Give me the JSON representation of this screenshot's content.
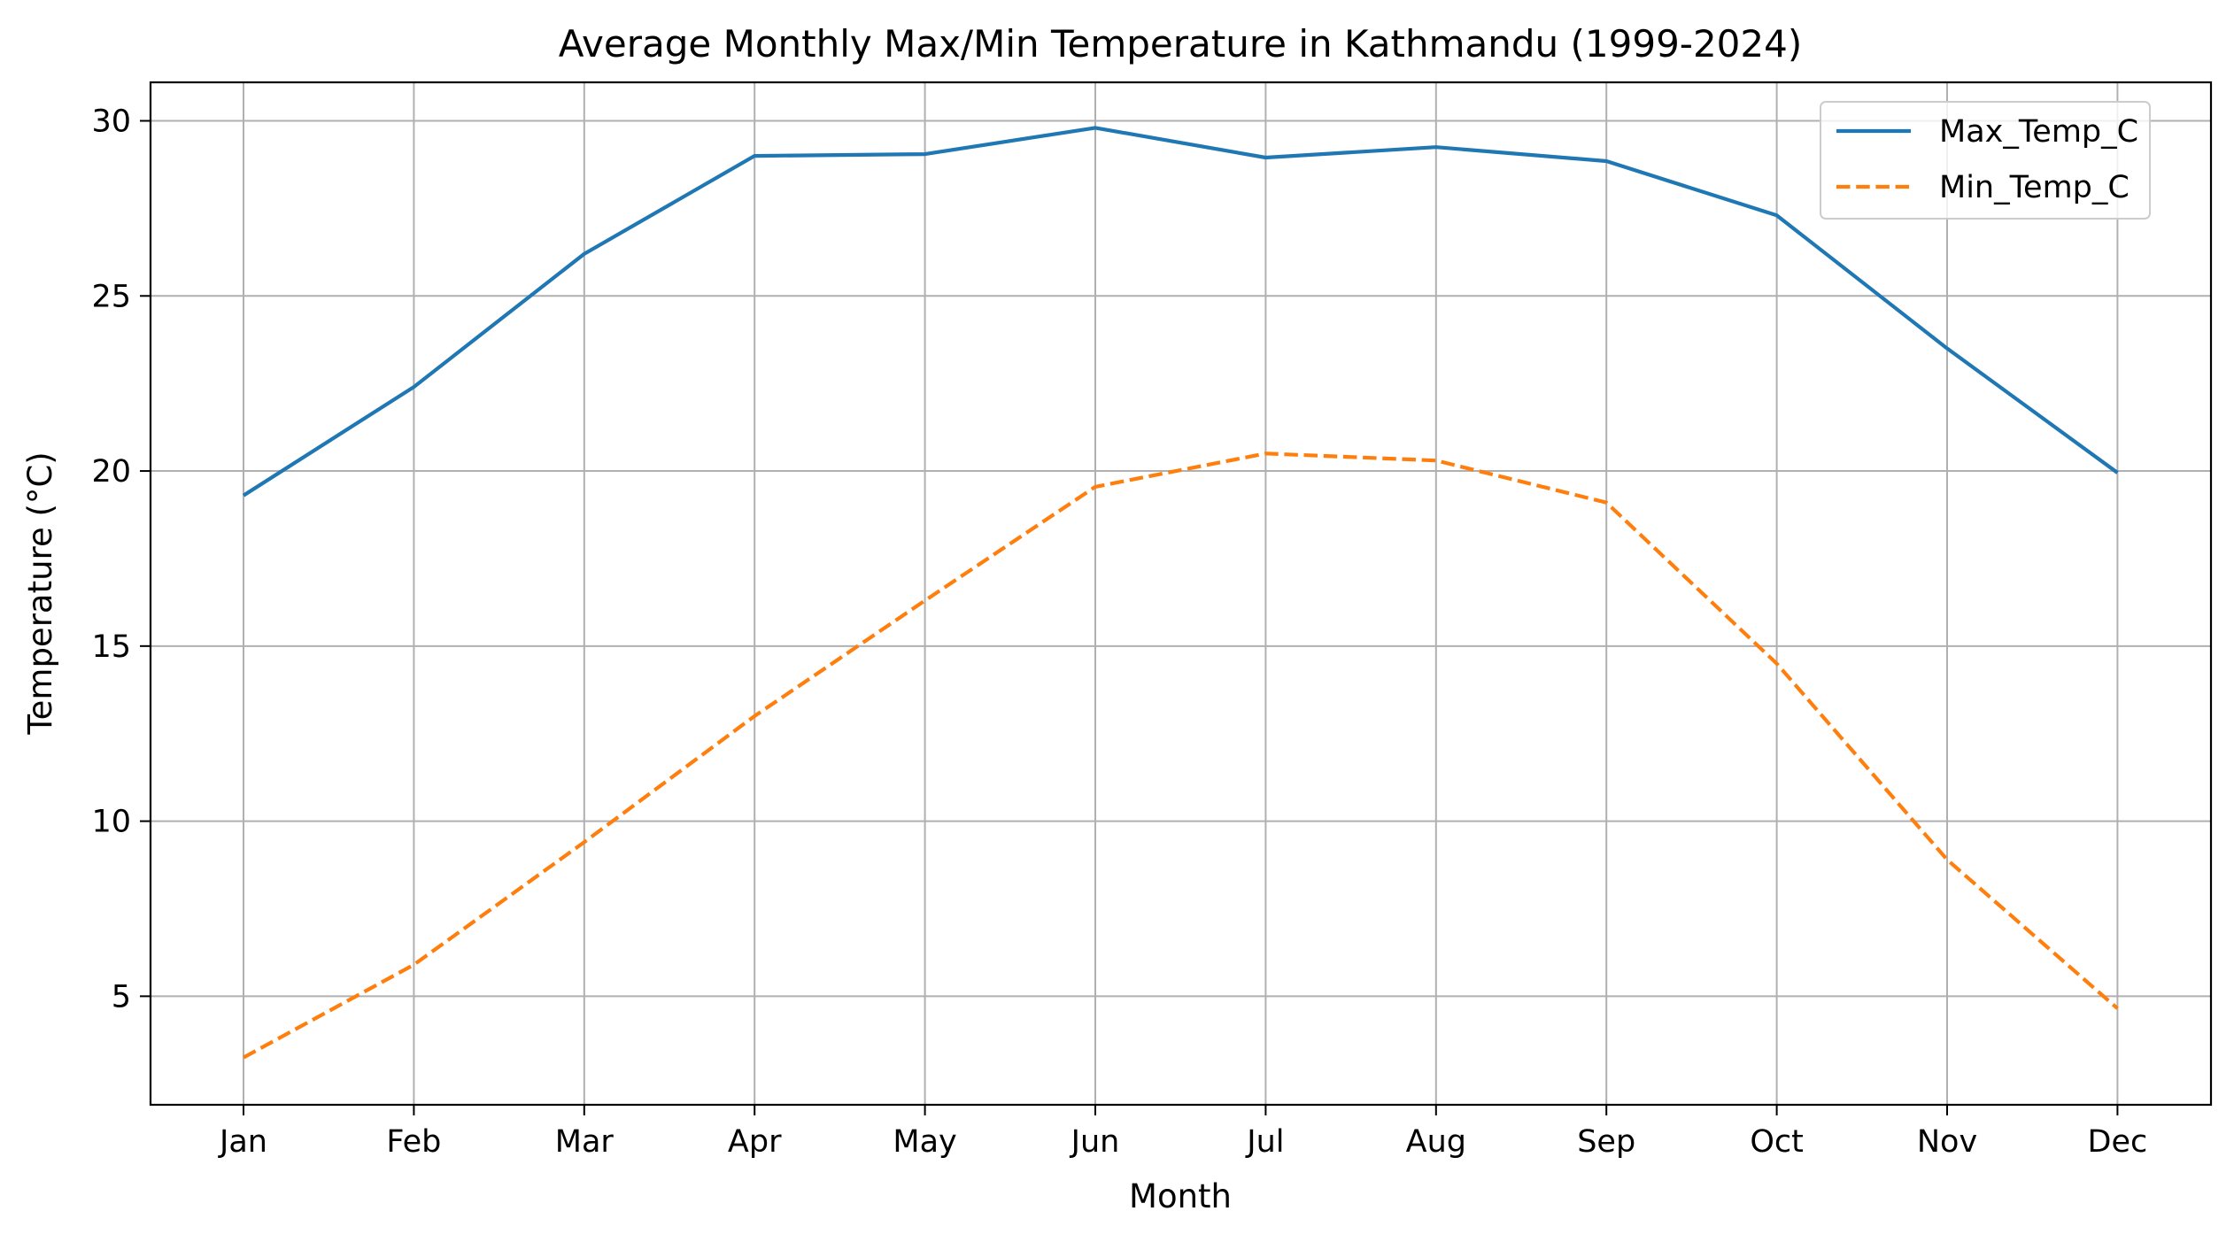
{
  "chart_data": {
    "type": "line",
    "title": "Average Monthly Max/Min Temperature in Kathmandu (1999-2024)",
    "xlabel": "Month",
    "ylabel": "Temperature (°C)",
    "categories": [
      "Jan",
      "Feb",
      "Mar",
      "Apr",
      "May",
      "Jun",
      "Jul",
      "Aug",
      "Sep",
      "Oct",
      "Nov",
      "Dec"
    ],
    "yticks": [
      5,
      10,
      15,
      20,
      25,
      30
    ],
    "ylim": [
      1.9,
      31.1
    ],
    "grid": true,
    "legend_position": "top-right",
    "series": [
      {
        "name": "Max_Temp_C",
        "color": "#1f77b4",
        "line_style": "solid",
        "values": [
          19.3,
          22.4,
          26.2,
          29.0,
          29.05,
          29.8,
          28.95,
          29.25,
          28.85,
          27.3,
          23.5,
          19.95
        ]
      },
      {
        "name": "Min_Temp_C",
        "color": "#ff7f0e",
        "line_style": "dashed",
        "values": [
          3.25,
          5.9,
          9.4,
          13.0,
          16.3,
          19.55,
          20.5,
          20.3,
          19.1,
          14.5,
          8.9,
          4.65
        ]
      }
    ]
  }
}
